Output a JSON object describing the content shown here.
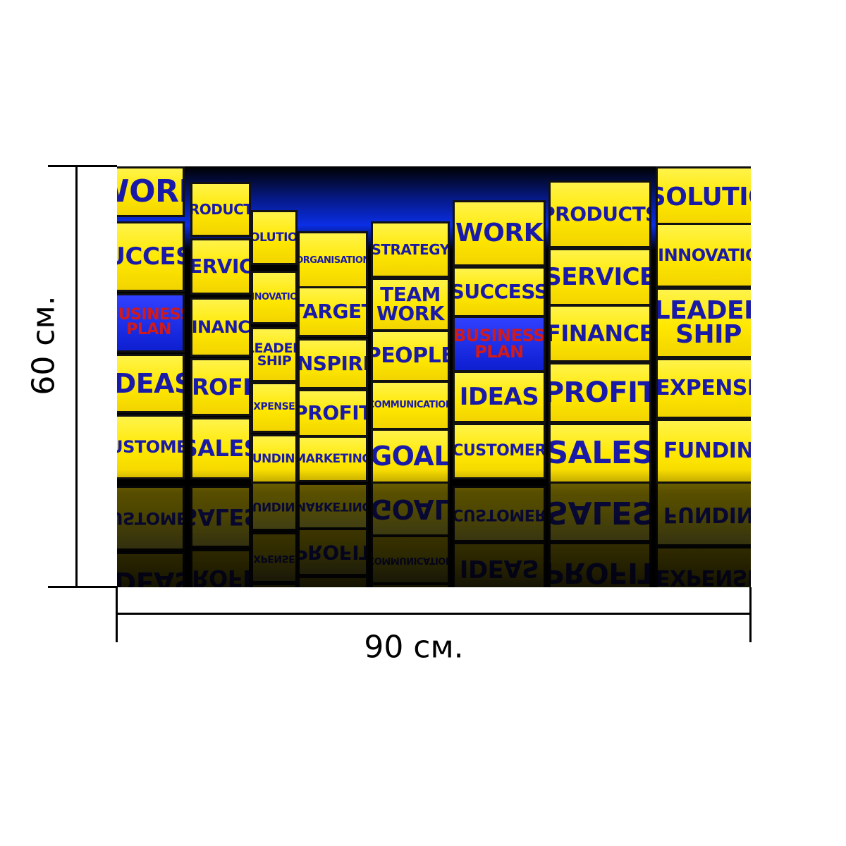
{
  "dimensions": {
    "height_label": "60 см.",
    "width_label": "90 см."
  },
  "poster": {
    "tiles": [
      {
        "text": "WORK",
        "style": "yellow"
      },
      {
        "text": "PRODUCTS",
        "style": "yellow"
      },
      {
        "text": "SOLUTION",
        "style": "yellow"
      },
      {
        "text": "SUCCESS",
        "style": "yellow"
      },
      {
        "text": "SERVICE",
        "style": "yellow"
      },
      {
        "text": "INNOVATION",
        "style": "yellow"
      },
      {
        "text": "BUSINESS\nPLAN",
        "style": "blue"
      },
      {
        "text": "FINANCE",
        "style": "yellow"
      },
      {
        "text": "LEADER\nSHIP",
        "style": "yellow"
      },
      {
        "text": "IDEAS",
        "style": "yellow"
      },
      {
        "text": "PROFIT",
        "style": "yellow"
      },
      {
        "text": "EXPENSES",
        "style": "yellow"
      },
      {
        "text": "CUSTOMER",
        "style": "yellow"
      },
      {
        "text": "SALES",
        "style": "yellow"
      },
      {
        "text": "FUNDING",
        "style": "yellow"
      },
      {
        "text": "ORGANISATION",
        "style": "yellow"
      },
      {
        "text": "STRATEGY",
        "style": "yellow"
      },
      {
        "text": "WORK",
        "style": "yellow"
      },
      {
        "text": "PRODUCTS",
        "style": "yellow"
      },
      {
        "text": "SOLUTIO",
        "style": "yellow"
      },
      {
        "text": "TARGET",
        "style": "yellow"
      },
      {
        "text": "TEAM\nWORK",
        "style": "yellow"
      },
      {
        "text": "SUCCESS",
        "style": "yellow"
      },
      {
        "text": "SERVICE",
        "style": "yellow"
      },
      {
        "text": "INNOVATIO",
        "style": "yellow"
      },
      {
        "text": "INSPIRE",
        "style": "yellow"
      },
      {
        "text": "PEOPLE",
        "style": "yellow"
      },
      {
        "text": "BUSINESS\nPLAN",
        "style": "blue"
      },
      {
        "text": "FINANCE",
        "style": "yellow"
      },
      {
        "text": "LEADER\nSHIP",
        "style": "yellow"
      },
      {
        "text": "PROFIT",
        "style": "yellow"
      },
      {
        "text": "COMMUNICATION",
        "style": "yellow"
      },
      {
        "text": "IDEAS",
        "style": "yellow"
      },
      {
        "text": "PROFIT",
        "style": "yellow"
      },
      {
        "text": "EXPENSE",
        "style": "yellow"
      },
      {
        "text": "MARKETING",
        "style": "yellow"
      },
      {
        "text": "GOAL",
        "style": "yellow"
      },
      {
        "text": "CUSTOMER",
        "style": "yellow"
      },
      {
        "text": "SALES",
        "style": "yellow"
      },
      {
        "text": "FUNDIN",
        "style": "yellow"
      }
    ]
  }
}
